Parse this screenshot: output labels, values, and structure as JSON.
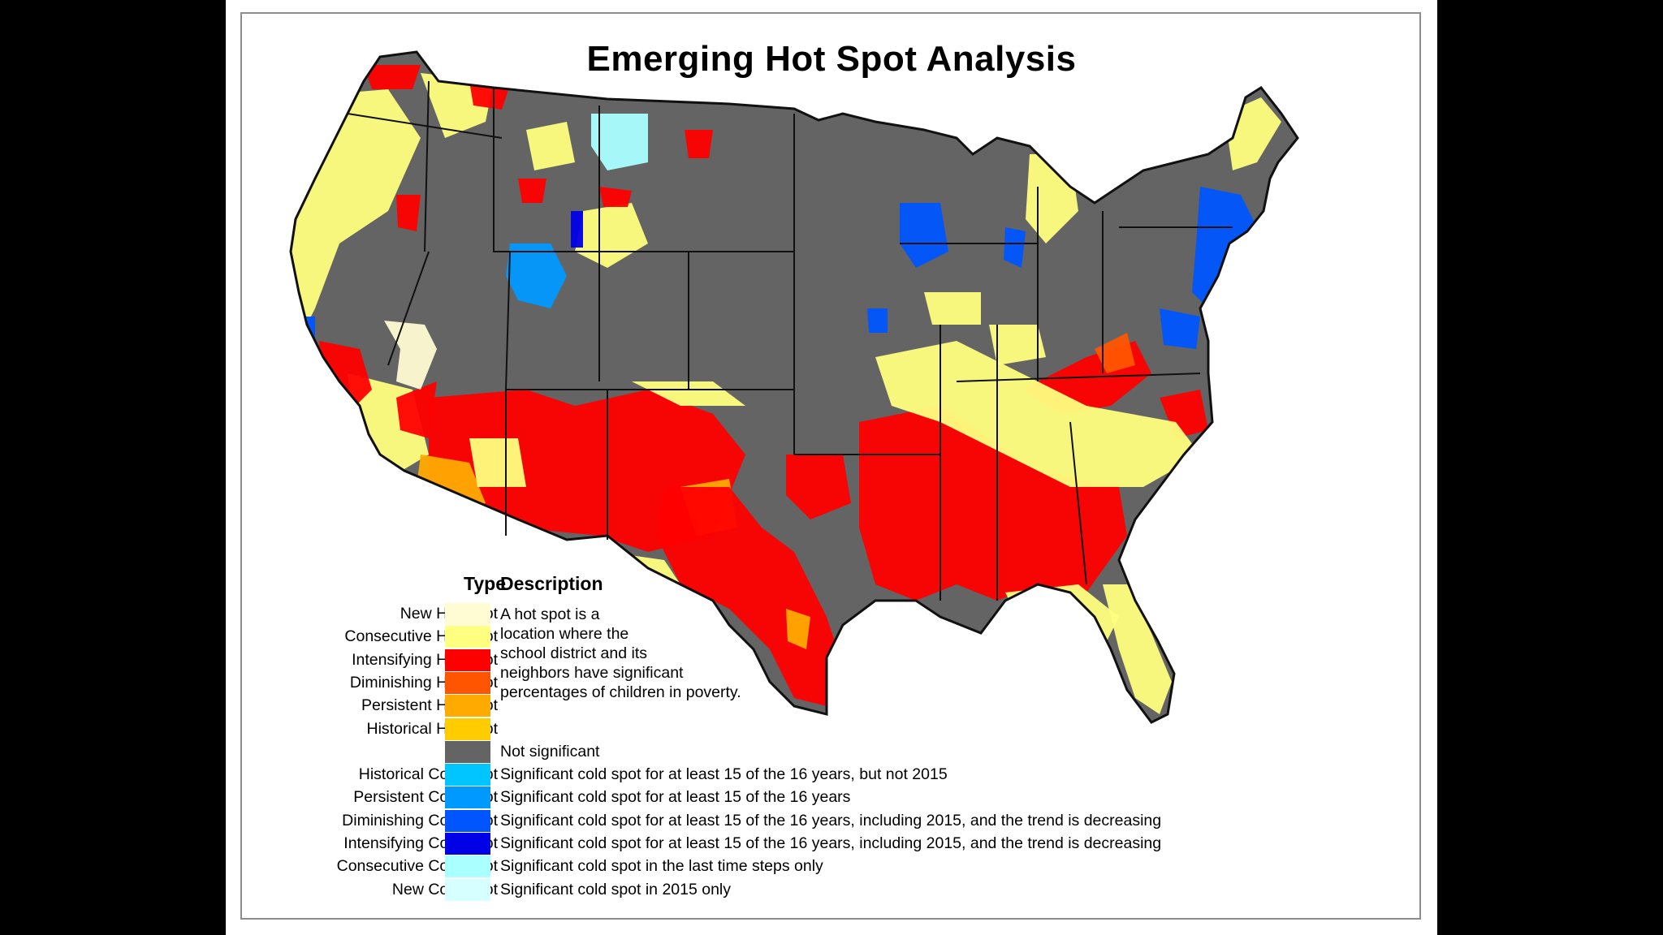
{
  "title": "Emerging Hot Spot Analysis",
  "legend": {
    "type_header": "Type",
    "description_header": "Description",
    "hot_spot_description": "A hot spot is a\nlocation where the\nschool district and its\nneighbors have significant\npercentages of children in poverty.",
    "items": [
      {
        "type": "New Hot Spot",
        "color": "#fffbd3",
        "description": ""
      },
      {
        "type": "Consecutive Hot Spot",
        "color": "#ffff80",
        "description": ""
      },
      {
        "type": "Intensifying Hot Spot",
        "color": "#ff0000",
        "description": ""
      },
      {
        "type": "Diminishing Hot Spot",
        "color": "#ff5500",
        "description": ""
      },
      {
        "type": "Persistent Hot Spot",
        "color": "#ffaa00",
        "description": ""
      },
      {
        "type": "Historical Hot Spot",
        "color": "#ffcc00",
        "description": ""
      },
      {
        "type": "",
        "color": "#646464",
        "description": "Not significant"
      },
      {
        "type": "Historical Cold Spot",
        "color": "#00c5ff",
        "description": "Significant cold spot for at least 15 of the 16 years, but not 2015"
      },
      {
        "type": "Persistent Cold Spot",
        "color": "#0099ff",
        "description": "Significant cold spot for at least 15 of the 16 years"
      },
      {
        "type": "Diminishing Cold Spot",
        "color": "#0055ff",
        "description": "Significant cold spot for at least 15 of the 16 years, including 2015, and the trend is decreasing"
      },
      {
        "type": "Intensifying Cold Spot",
        "color": "#0000e6",
        "description": "Significant cold spot for at least 15 of the 16 years, including 2015, and the trend is decreasing"
      },
      {
        "type": "Consecutive Cold Spot",
        "color": "#aaffff",
        "description": "Significant cold spot in the last time steps only"
      },
      {
        "type": "New Cold Spot",
        "color": "#d6ffff",
        "description": "Significant cold spot in 2015 only"
      }
    ]
  },
  "colors": {
    "not_significant": "#646464",
    "border": "#111111",
    "new_hot": "#fffbd3",
    "consecutive_hot": "#ffff80",
    "intensifying_hot": "#ff0000",
    "diminishing_hot": "#ff5500",
    "persistent_hot": "#ffaa00",
    "historical_hot": "#ffcc00",
    "persistent_cold": "#0099ff",
    "diminishing_cold": "#0055ff",
    "intensifying_cold": "#0000e6",
    "consecutive_cold": "#aaffff"
  }
}
